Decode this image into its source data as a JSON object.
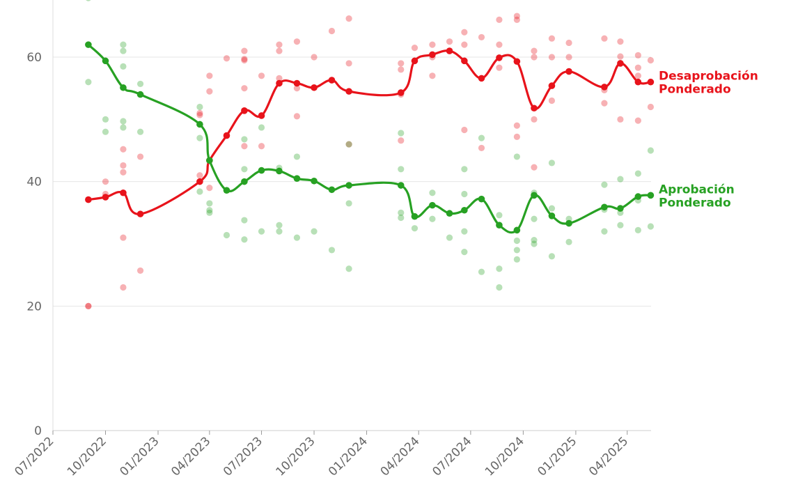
{
  "chart_data": {
    "type": "line",
    "title": "",
    "xlabel": "",
    "ylabel": "",
    "ylim": [
      0,
      70
    ],
    "y_ticks": [
      "0",
      "20",
      "40",
      "60"
    ],
    "x_ticks": [
      "07/2022",
      "10/2022",
      "01/2023",
      "04/2023",
      "07/2023",
      "10/2023",
      "01/2024",
      "04/2024",
      "07/2024",
      "10/2024",
      "01/2025",
      "04/2025"
    ],
    "x_tick_dates": [
      "2022-07-01",
      "2022-10-01",
      "2023-01-01",
      "2023-04-01",
      "2023-07-01",
      "2023-10-01",
      "2024-01-01",
      "2024-04-01",
      "2024-07-01",
      "2024-10-01",
      "2025-01-01",
      "2025-04-01"
    ],
    "xlim": [
      "2022-07-01",
      "2025-05-15"
    ],
    "grid": true,
    "series": [
      {
        "name": "Desaprobación Ponderado",
        "label_lines": [
          "Desaprobación",
          "Ponderado"
        ],
        "color": "#e8131b",
        "x": [
          "2022-09-01",
          "2022-10-01",
          "2022-11-01",
          "2022-12-01",
          "2023-03-15",
          "2023-04-01",
          "2023-05-01",
          "2023-06-01",
          "2023-07-01",
          "2023-08-01",
          "2023-09-01",
          "2023-10-01",
          "2023-11-01",
          "2023-12-01",
          "2024-03-01",
          "2024-03-25",
          "2024-04-25",
          "2024-05-25",
          "2024-06-20",
          "2024-07-20",
          "2024-08-20",
          "2024-09-20",
          "2024-10-20",
          "2024-11-20",
          "2024-12-20",
          "2025-02-20",
          "2025-03-20",
          "2025-04-20",
          "2025-05-12"
        ],
        "values": [
          37.1,
          37.5,
          38.2,
          34.8,
          40.0,
          43.4,
          47.4,
          51.4,
          50.6,
          55.8,
          55.8,
          55.1,
          56.3,
          54.5,
          54.3,
          59.4,
          60.4,
          61.0,
          59.4,
          56.6,
          59.9,
          59.3,
          51.8,
          55.4,
          57.7,
          55.2,
          59.0,
          56.0,
          56.0
        ]
      },
      {
        "name": "Aprobación Ponderado",
        "label_lines": [
          "Aprobación",
          "Ponderado"
        ],
        "color": "#27a123",
        "x": [
          "2022-09-01",
          "2022-10-01",
          "2022-11-01",
          "2022-12-01",
          "2023-03-15",
          "2023-04-01",
          "2023-05-01",
          "2023-06-01",
          "2023-07-01",
          "2023-08-01",
          "2023-09-01",
          "2023-10-01",
          "2023-11-01",
          "2023-12-01",
          "2024-03-01",
          "2024-03-25",
          "2024-04-25",
          "2024-05-25",
          "2024-06-20",
          "2024-07-20",
          "2024-08-20",
          "2024-09-20",
          "2024-10-20",
          "2024-11-20",
          "2024-12-20",
          "2025-02-20",
          "2025-03-20",
          "2025-04-20",
          "2025-05-12"
        ],
        "values": [
          62.0,
          59.4,
          55.1,
          54.0,
          49.2,
          43.4,
          38.6,
          40.0,
          41.8,
          41.7,
          40.5,
          40.1,
          38.7,
          39.4,
          39.4,
          34.4,
          36.2,
          34.9,
          35.4,
          37.2,
          33.0,
          32.2,
          37.8,
          34.5,
          33.3,
          35.9,
          35.7,
          37.6,
          37.8
        ]
      }
    ],
    "polls": [
      {
        "series": "Desaprobación Ponderado",
        "x": [
          "2022-09-01",
          "2022-09-01",
          "2022-10-01",
          "2022-10-01",
          "2022-11-01",
          "2022-11-01",
          "2022-11-01",
          "2022-11-01",
          "2022-11-01",
          "2022-12-01",
          "2022-12-01",
          "2023-03-15",
          "2023-03-15",
          "2023-03-15",
          "2023-04-01",
          "2023-04-01",
          "2023-04-01",
          "2023-05-01",
          "2023-06-01",
          "2023-06-01",
          "2023-06-01",
          "2023-06-01",
          "2023-06-01",
          "2023-07-01",
          "2023-07-01",
          "2023-08-01",
          "2023-08-01",
          "2023-08-01",
          "2023-09-01",
          "2023-09-01",
          "2023-09-01",
          "2023-10-01",
          "2023-11-01",
          "2023-12-01",
          "2023-12-01",
          "2023-12-01",
          "2024-03-01",
          "2024-03-01",
          "2024-03-01",
          "2024-03-01",
          "2024-03-25",
          "2024-04-25",
          "2024-04-25",
          "2024-04-25",
          "2024-05-25",
          "2024-06-20",
          "2024-06-20",
          "2024-06-20",
          "2024-07-20",
          "2024-07-20",
          "2024-08-20",
          "2024-08-20",
          "2024-08-20",
          "2024-09-20",
          "2024-09-20",
          "2024-09-20",
          "2024-09-20",
          "2024-10-20",
          "2024-10-20",
          "2024-10-20",
          "2024-10-20",
          "2024-11-20",
          "2024-11-20",
          "2024-11-20",
          "2024-12-20",
          "2024-12-20",
          "2025-02-20",
          "2025-02-20",
          "2025-02-20",
          "2025-03-20",
          "2025-03-20",
          "2025-03-20",
          "2025-04-20",
          "2025-04-20",
          "2025-04-20",
          "2025-04-20",
          "2025-05-12",
          "2025-05-12"
        ],
        "values": [
          20.0,
          20.0,
          40.0,
          38.0,
          45.2,
          42.6,
          41.5,
          31.0,
          23.0,
          44.0,
          25.7,
          51.0,
          50.7,
          41.0,
          57.0,
          54.5,
          39.0,
          59.8,
          61.0,
          59.7,
          59.5,
          55.0,
          45.7,
          57.0,
          45.7,
          62.0,
          61.0,
          56.6,
          62.5,
          55.0,
          50.5,
          60.0,
          64.2,
          66.2,
          59.0,
          46.0,
          59.0,
          58.0,
          54.0,
          46.6,
          61.5,
          62.0,
          60.0,
          57.0,
          62.5,
          64.0,
          62.0,
          48.3,
          63.2,
          45.4,
          66.0,
          62.0,
          58.3,
          66.6,
          66.0,
          49.0,
          47.2,
          61.0,
          60.0,
          50.0,
          42.3,
          63.0,
          60.0,
          53.0,
          62.3,
          60.0,
          63.0,
          54.7,
          52.6,
          62.5,
          60.1,
          50.0,
          60.3,
          58.3,
          57.0,
          49.8,
          59.5,
          52.0
        ]
      },
      {
        "series": "Aprobación Ponderado",
        "x": [
          "2022-09-01",
          "2022-09-01",
          "2022-10-01",
          "2022-10-01",
          "2022-11-01",
          "2022-11-01",
          "2022-11-01",
          "2022-11-01",
          "2022-11-01",
          "2022-12-01",
          "2022-12-01",
          "2023-03-15",
          "2023-03-15",
          "2023-03-15",
          "2023-04-01",
          "2023-04-01",
          "2023-04-01",
          "2023-05-01",
          "2023-06-01",
          "2023-06-01",
          "2023-06-01",
          "2023-06-01",
          "2023-07-01",
          "2023-07-01",
          "2023-08-01",
          "2023-08-01",
          "2023-08-01",
          "2023-09-01",
          "2023-09-01",
          "2023-10-01",
          "2023-11-01",
          "2023-12-01",
          "2023-12-01",
          "2023-12-01",
          "2024-03-01",
          "2024-03-01",
          "2024-03-01",
          "2024-03-01",
          "2024-03-25",
          "2024-04-25",
          "2024-04-25",
          "2024-05-25",
          "2024-06-20",
          "2024-06-20",
          "2024-06-20",
          "2024-06-20",
          "2024-07-20",
          "2024-07-20",
          "2024-08-20",
          "2024-08-20",
          "2024-08-20",
          "2024-09-20",
          "2024-09-20",
          "2024-09-20",
          "2024-09-20",
          "2024-10-20",
          "2024-10-20",
          "2024-10-20",
          "2024-10-20",
          "2024-11-20",
          "2024-11-20",
          "2024-11-20",
          "2024-12-20",
          "2024-12-20",
          "2025-02-20",
          "2025-02-20",
          "2025-02-20",
          "2025-03-20",
          "2025-03-20",
          "2025-03-20",
          "2025-04-20",
          "2025-04-20",
          "2025-04-20",
          "2025-05-12",
          "2025-05-12"
        ],
        "values": [
          69.5,
          56.0,
          50.0,
          48.0,
          62.0,
          61.0,
          58.5,
          49.7,
          48.7,
          55.7,
          48.0,
          52.0,
          47.0,
          38.4,
          36.5,
          35.4,
          35.0,
          31.4,
          46.8,
          42.0,
          33.8,
          30.7,
          48.7,
          32.0,
          42.2,
          33.0,
          32.0,
          44.0,
          31.0,
          32.0,
          29.0,
          46.0,
          36.5,
          26.0,
          47.8,
          42.0,
          35.0,
          34.2,
          32.5,
          38.2,
          34.0,
          31.0,
          42.0,
          38.0,
          32.0,
          28.7,
          47.0,
          25.5,
          34.6,
          26.0,
          23.0,
          44.0,
          30.5,
          29.0,
          27.5,
          38.2,
          34.0,
          30.6,
          30.0,
          43.0,
          35.7,
          28.0,
          34.0,
          30.3,
          39.5,
          35.5,
          32.0,
          40.4,
          35.0,
          33.0,
          41.3,
          37.0,
          32.2,
          45.0,
          32.8
        ]
      }
    ]
  }
}
